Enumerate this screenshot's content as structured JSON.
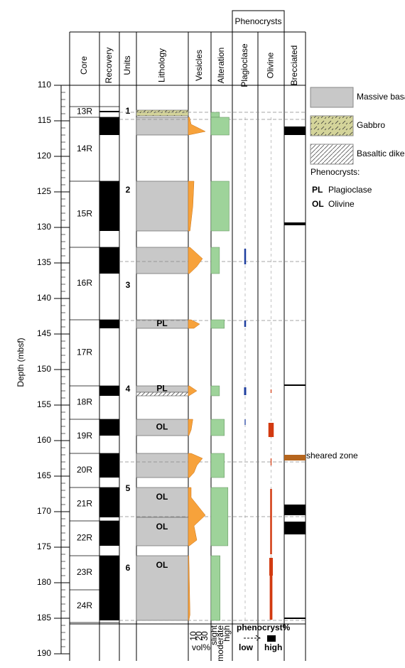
{
  "group_header": "Phenocrysts",
  "columns": [
    "Core",
    "Recovery",
    "Units",
    "Lithology",
    "Vesicles",
    "Alteration",
    "Plagioclase",
    "Olivine",
    "Brecciated"
  ],
  "depth_axis": {
    "label": "Depth (mbsf)",
    "lim": [
      110,
      190
    ],
    "ticks": [
      110,
      115,
      120,
      125,
      130,
      135,
      140,
      145,
      150,
      155,
      160,
      165,
      170,
      175,
      180,
      185,
      190
    ],
    "minor_tick_interval": 1
  },
  "cores": [
    {
      "name": "13R",
      "top": 113,
      "bottom": 114.5
    },
    {
      "name": "14R",
      "top": 114.5,
      "bottom": 123.5
    },
    {
      "name": "15R",
      "top": 123.5,
      "bottom": 132.8
    },
    {
      "name": "16R",
      "top": 132.8,
      "bottom": 143
    },
    {
      "name": "17R",
      "top": 143,
      "bottom": 152.3
    },
    {
      "name": "18R",
      "top": 152.3,
      "bottom": 157
    },
    {
      "name": "19R",
      "top": 157,
      "bottom": 161.8
    },
    {
      "name": "20R",
      "top": 161.8,
      "bottom": 166.6
    },
    {
      "name": "21R",
      "top": 166.6,
      "bottom": 171.3
    },
    {
      "name": "22R",
      "top": 171.3,
      "bottom": 176.2
    },
    {
      "name": "23R",
      "top": 176.2,
      "bottom": 181
    },
    {
      "name": "24R",
      "top": 181,
      "bottom": 185.6
    }
  ],
  "recovery": [
    {
      "top": 113.6,
      "bottom": 113.8
    },
    {
      "top": 114.5,
      "bottom": 117
    },
    {
      "top": 123.5,
      "bottom": 130.5
    },
    {
      "top": 132.8,
      "bottom": 136.5
    },
    {
      "top": 143,
      "bottom": 144.2
    },
    {
      "top": 152.3,
      "bottom": 153.7
    },
    {
      "top": 157,
      "bottom": 159.3
    },
    {
      "top": 161.8,
      "bottom": 165.2
    },
    {
      "top": 166.6,
      "bottom": 170.8
    },
    {
      "top": 171.3,
      "bottom": 174.8
    },
    {
      "top": 176.2,
      "bottom": 181
    },
    {
      "top": 181,
      "bottom": 185.3
    }
  ],
  "units": [
    {
      "label": "1",
      "depth": 113.7
    },
    {
      "label": "2",
      "depth": 124.8
    },
    {
      "label": "3",
      "depth": 138.2
    },
    {
      "label": "4",
      "depth": 152.8
    },
    {
      "label": "5",
      "depth": 166.8
    },
    {
      "label": "6",
      "depth": 178
    }
  ],
  "unit_boundaries": [
    113.8,
    114.8,
    134.8,
    143.1,
    163,
    170.7,
    185.3
  ],
  "lithology": [
    {
      "type": "gabbro",
      "top": 113.5,
      "bottom": 114.3
    },
    {
      "type": "massive_basalt",
      "top": 114.5,
      "bottom": 117
    },
    {
      "type": "massive_basalt",
      "top": 123.5,
      "bottom": 130.5
    },
    {
      "type": "massive_basalt",
      "top": 132.8,
      "bottom": 136.5
    },
    {
      "type": "massive_basalt",
      "top": 143,
      "bottom": 144.2,
      "label": "PL"
    },
    {
      "type": "massive_basalt",
      "top": 152.3,
      "bottom": 153.2,
      "label": "PL"
    },
    {
      "type": "basaltic_dike",
      "top": 153.2,
      "bottom": 153.7
    },
    {
      "type": "massive_basalt",
      "top": 157,
      "bottom": 159.3,
      "label": "OL"
    },
    {
      "type": "massive_basalt",
      "top": 161.8,
      "bottom": 165.2
    },
    {
      "type": "massive_basalt",
      "top": 166.6,
      "bottom": 170.8,
      "label": "OL"
    },
    {
      "type": "massive_basalt",
      "top": 170.8,
      "bottom": 174.8,
      "label": "OL"
    },
    {
      "type": "massive_basalt",
      "top": 176.2,
      "bottom": 185.3,
      "label": "OL"
    }
  ],
  "vesicles": [
    [
      [
        114.5,
        2
      ],
      [
        115.5,
        5
      ],
      [
        116.5,
        30
      ],
      [
        117,
        0
      ]
    ],
    [
      [
        123.5,
        10
      ],
      [
        127,
        8
      ],
      [
        130.5,
        3
      ]
    ],
    [
      [
        132.8,
        3
      ],
      [
        134.4,
        25
      ],
      [
        135.5,
        15
      ],
      [
        136.5,
        2
      ]
    ],
    [
      [
        143,
        5
      ],
      [
        143.6,
        20
      ],
      [
        144.2,
        10
      ]
    ],
    [
      [
        152.3,
        2
      ],
      [
        153,
        15
      ],
      [
        153.7,
        1
      ]
    ],
    [
      [
        157,
        8
      ],
      [
        158.5,
        5
      ],
      [
        159.3,
        1
      ]
    ],
    [
      [
        161.8,
        5
      ],
      [
        162.5,
        25
      ],
      [
        163.5,
        15
      ],
      [
        164.5,
        10
      ],
      [
        165.2,
        2
      ]
    ],
    [
      [
        166.6,
        5
      ],
      [
        168,
        5
      ],
      [
        170.5,
        30
      ],
      [
        172,
        10
      ],
      [
        174,
        15
      ],
      [
        174.8,
        2
      ]
    ],
    [
      [
        176.2,
        1
      ],
      [
        184.5,
        3
      ],
      [
        185.3,
        1
      ]
    ]
  ],
  "alteration": [
    {
      "top": 113.8,
      "bottom": 114.5,
      "level": 1.4
    },
    {
      "top": 114.5,
      "bottom": 117,
      "level": 3
    },
    {
      "top": 123.5,
      "bottom": 130.5,
      "level": 3
    },
    {
      "top": 132.8,
      "bottom": 136.5,
      "level": 1.4
    },
    {
      "top": 143,
      "bottom": 144.2,
      "level": 2.2
    },
    {
      "top": 152.3,
      "bottom": 153.7,
      "level": 1.4
    },
    {
      "top": 157,
      "bottom": 159.3,
      "level": 2.2
    },
    {
      "top": 161.8,
      "bottom": 165.2,
      "level": 2.2
    },
    {
      "top": 166.6,
      "bottom": 174.8,
      "level": 2.8
    },
    {
      "top": 176.2,
      "bottom": 185.3,
      "level": 1.5
    }
  ],
  "plagioclase": [
    {
      "top": 133,
      "bottom": 135.2,
      "abundance": 1
    },
    {
      "top": 143.1,
      "bottom": 144,
      "abundance": 1
    },
    {
      "top": 152.5,
      "bottom": 153.6,
      "abundance": 1.2
    },
    {
      "top": 157,
      "bottom": 157.8,
      "abundance": 0.5
    }
  ],
  "olivine": [
    {
      "top": 152.8,
      "bottom": 153.3,
      "abundance": 0.5
    },
    {
      "top": 157.5,
      "bottom": 159.5,
      "abundance": 3
    },
    {
      "top": 162.5,
      "bottom": 163.5,
      "abundance": 0.5
    },
    {
      "top": 166.8,
      "bottom": 176,
      "abundance": 1
    },
    {
      "top": 176.5,
      "bottom": 179,
      "abundance": 2
    },
    {
      "top": 179,
      "bottom": 185.2,
      "abundance": 1.5
    }
  ],
  "brecciated": [
    {
      "top": 115.8,
      "bottom": 117,
      "color": "#000000"
    },
    {
      "top": 129.3,
      "bottom": 129.7,
      "color": "#000000"
    },
    {
      "top": 152.1,
      "bottom": 152.3,
      "color": "#000000"
    },
    {
      "top": 162,
      "bottom": 162.8,
      "color": "#b5651d"
    },
    {
      "top": 169,
      "bottom": 170.5,
      "color": "#000000"
    },
    {
      "top": 171.4,
      "bottom": 173.2,
      "color": "#000000"
    },
    {
      "top": 184.9,
      "bottom": 185.1,
      "color": "#000000"
    }
  ],
  "annotation": {
    "text": "sheared zone",
    "depth": 162.3
  },
  "legend": {
    "items": [
      {
        "type": "massive_basalt",
        "label": "Massive basalt"
      },
      {
        "type": "gabbro",
        "label": "Gabbro"
      },
      {
        "type": "basaltic_dike",
        "label": "Basaltic dike?"
      }
    ],
    "phenocrysts_title": "Phenocrysts:",
    "phenocrysts": [
      {
        "abbr": "PL",
        "name": "Plagioclase"
      },
      {
        "abbr": "OL",
        "name": "Olivine"
      }
    ]
  },
  "key": {
    "vesicle_ticks": [
      10,
      20,
      30
    ],
    "vesicle_unit": "vol%",
    "alteration": [
      "slight",
      "moderate",
      "high"
    ],
    "phenocryst_title": "phenocryst%",
    "low": "low",
    "high": "high"
  }
}
